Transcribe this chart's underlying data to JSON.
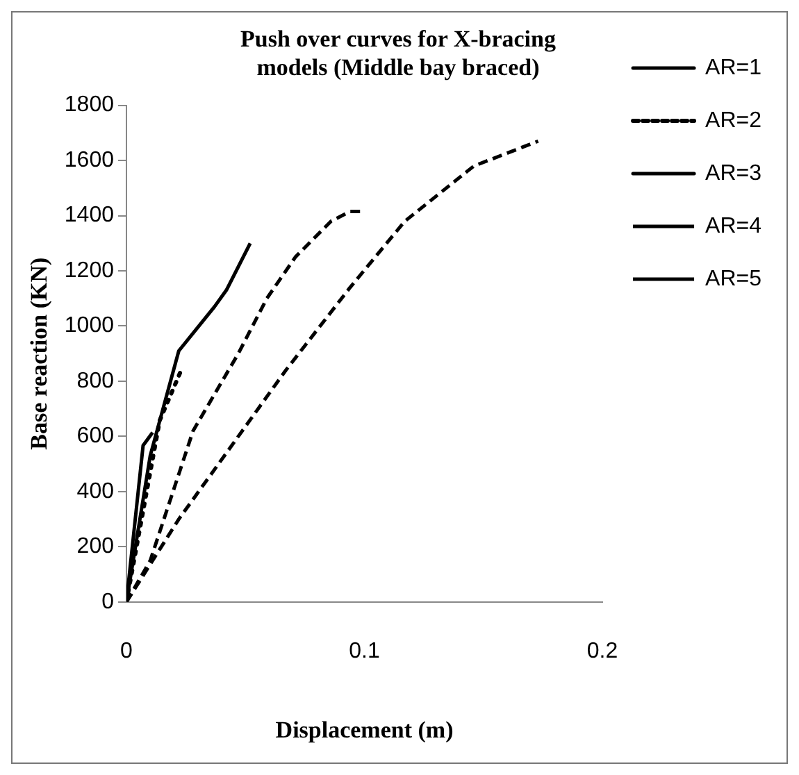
{
  "chart_data": {
    "type": "line",
    "title": "Push over curves for X-bracing models (Middle bay braced)",
    "xlabel": "Displacement (m)",
    "ylabel": "Base reaction (KN)",
    "xlim": [
      0,
      0.2
    ],
    "xticks": [
      0,
      0.1,
      0.2
    ],
    "ylim": [
      0,
      1800
    ],
    "yticks": [
      0,
      200,
      400,
      600,
      800,
      1000,
      1200,
      1400,
      1600,
      1800
    ],
    "legend": "right",
    "grid": false,
    "marker": "none",
    "series": [
      {
        "name": "AR=1",
        "color": "#000000",
        "line_style": "solid",
        "x": [
          0,
          0.007,
          0.011
        ],
        "values": [
          0,
          567,
          614
        ]
      },
      {
        "name": "AR=2",
        "color": "#000000",
        "line_style": "dotted",
        "x": [
          0,
          0.014,
          0.02,
          0.023
        ],
        "values": [
          0,
          658,
          779,
          840
        ]
      },
      {
        "name": "AR=3",
        "color": "#000000",
        "line_style": "solid",
        "x": [
          0,
          0.01,
          0.022,
          0.037,
          0.042,
          0.052
        ],
        "values": [
          0,
          530,
          910,
          1070,
          1130,
          1300
        ]
      },
      {
        "name": "AR=4",
        "color": "#000000",
        "line_style": "dashed",
        "x": [
          0,
          0.01,
          0.028,
          0.047,
          0.059,
          0.071,
          0.086,
          0.094,
          0.1
        ],
        "values": [
          0,
          150,
          620,
          900,
          1100,
          1250,
          1380,
          1415,
          1415
        ]
      },
      {
        "name": "AR=5",
        "color": "#000000",
        "line_style": "dashed",
        "x": [
          0,
          0.022,
          0.067,
          0.094,
          0.117,
          0.146,
          0.173
        ],
        "values": [
          0,
          300,
          840,
          1140,
          1380,
          1580,
          1670
        ]
      }
    ]
  }
}
